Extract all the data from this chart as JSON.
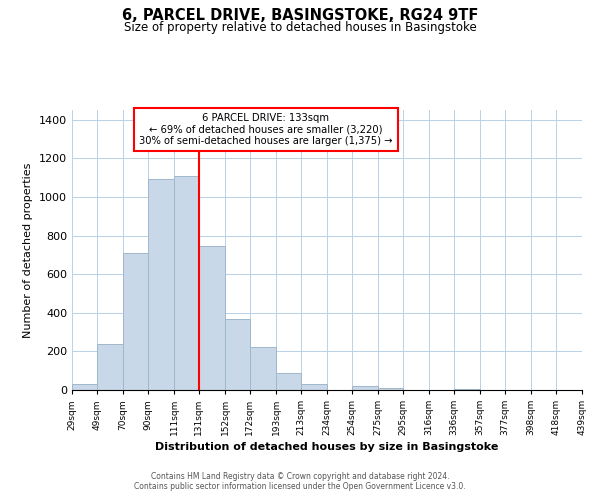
{
  "title": "6, PARCEL DRIVE, BASINGSTOKE, RG24 9TF",
  "subtitle": "Size of property relative to detached houses in Basingstoke",
  "xlabel": "Distribution of detached houses by size in Basingstoke",
  "ylabel": "Number of detached properties",
  "bar_color": "#c8d8e8",
  "bar_edge_color": "#a0b8cc",
  "vline_x": 131,
  "vline_color": "red",
  "annotation_title": "6 PARCEL DRIVE: 133sqm",
  "annotation_line1": "← 69% of detached houses are smaller (3,220)",
  "annotation_line2": "30% of semi-detached houses are larger (1,375) →",
  "annotation_box_color": "red",
  "bins": [
    29,
    49,
    70,
    90,
    111,
    131,
    152,
    172,
    193,
    213,
    234,
    254,
    275,
    295,
    316,
    336,
    357,
    377,
    398,
    418,
    439
  ],
  "bin_labels": [
    "29sqm",
    "49sqm",
    "70sqm",
    "90sqm",
    "111sqm",
    "131sqm",
    "152sqm",
    "172sqm",
    "193sqm",
    "213sqm",
    "234sqm",
    "254sqm",
    "275sqm",
    "295sqm",
    "316sqm",
    "336sqm",
    "357sqm",
    "377sqm",
    "398sqm",
    "418sqm",
    "439sqm"
  ],
  "heights": [
    30,
    240,
    710,
    1095,
    1110,
    745,
    370,
    225,
    88,
    30,
    0,
    20,
    10,
    0,
    0,
    5,
    0,
    0,
    0,
    0
  ],
  "ylim": [
    0,
    1450
  ],
  "yticks": [
    0,
    200,
    400,
    600,
    800,
    1000,
    1200,
    1400
  ],
  "footer1": "Contains HM Land Registry data © Crown copyright and database right 2024.",
  "footer2": "Contains public sector information licensed under the Open Government Licence v3.0."
}
